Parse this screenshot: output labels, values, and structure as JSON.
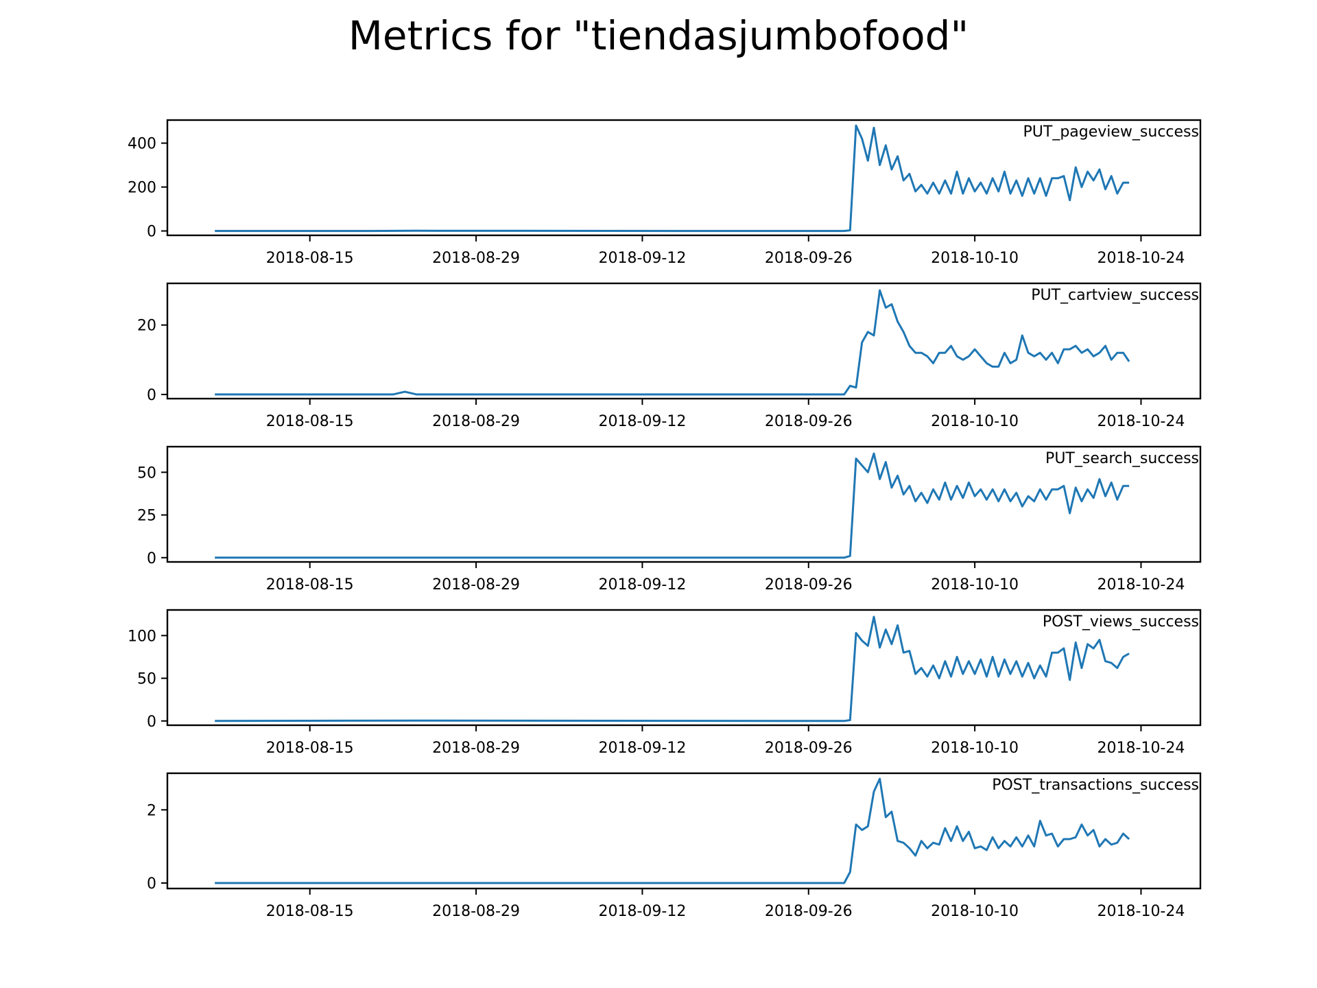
{
  "chart_data": {
    "type": "line",
    "title": "Metrics for \"tiendasjumbofood\"",
    "x_ticks": [
      "2018-08-15",
      "2018-08-29",
      "2018-09-12",
      "2018-09-26",
      "2018-10-10",
      "2018-10-24"
    ],
    "xlim": [
      "2018-08-03",
      "2018-10-29"
    ],
    "grid": false,
    "series_color": "#1f77b4",
    "panels": [
      {
        "label": "PUT_pageview_success",
        "ylim": [
          -20,
          505
        ],
        "yticks": [
          0,
          200,
          400
        ],
        "points": [
          [
            "2018-08-07",
            0
          ],
          [
            "2018-08-20",
            0
          ],
          [
            "2018-08-24",
            1
          ],
          [
            "2018-09-15",
            0
          ],
          [
            "2018-09-29",
            0
          ],
          [
            "2018-09-29T12",
            3
          ],
          [
            "2018-09-30",
            480
          ],
          [
            "2018-09-30T12",
            420
          ],
          [
            "2018-10-01",
            320
          ],
          [
            "2018-10-01T12",
            470
          ],
          [
            "2018-10-02",
            300
          ],
          [
            "2018-10-02T12",
            390
          ],
          [
            "2018-10-03",
            280
          ],
          [
            "2018-10-03T12",
            340
          ],
          [
            "2018-10-04",
            230
          ],
          [
            "2018-10-04T12",
            260
          ],
          [
            "2018-10-05",
            180
          ],
          [
            "2018-10-05T12",
            210
          ],
          [
            "2018-10-06",
            170
          ],
          [
            "2018-10-06T12",
            220
          ],
          [
            "2018-10-07",
            170
          ],
          [
            "2018-10-07T12",
            230
          ],
          [
            "2018-10-08",
            170
          ],
          [
            "2018-10-08T12",
            270
          ],
          [
            "2018-10-09",
            170
          ],
          [
            "2018-10-09T12",
            240
          ],
          [
            "2018-10-10",
            180
          ],
          [
            "2018-10-10T12",
            220
          ],
          [
            "2018-10-11",
            170
          ],
          [
            "2018-10-11T12",
            240
          ],
          [
            "2018-10-12",
            180
          ],
          [
            "2018-10-12T12",
            270
          ],
          [
            "2018-10-13",
            170
          ],
          [
            "2018-10-13T12",
            230
          ],
          [
            "2018-10-14",
            160
          ],
          [
            "2018-10-14T12",
            240
          ],
          [
            "2018-10-15",
            170
          ],
          [
            "2018-10-15T12",
            240
          ],
          [
            "2018-10-16",
            160
          ],
          [
            "2018-10-16T12",
            240
          ],
          [
            "2018-10-17",
            240
          ],
          [
            "2018-10-17T12",
            250
          ],
          [
            "2018-10-18",
            140
          ],
          [
            "2018-10-18T12",
            290
          ],
          [
            "2018-10-19",
            200
          ],
          [
            "2018-10-19T12",
            270
          ],
          [
            "2018-10-20",
            230
          ],
          [
            "2018-10-20T12",
            280
          ],
          [
            "2018-10-21",
            190
          ],
          [
            "2018-10-21T12",
            250
          ],
          [
            "2018-10-22",
            170
          ],
          [
            "2018-10-22T12",
            220
          ],
          [
            "2018-10-23",
            220
          ]
        ]
      },
      {
        "label": "PUT_cartview_success",
        "ylim": [
          -1.2,
          32
        ],
        "yticks": [
          0,
          20
        ],
        "points": [
          [
            "2018-08-07",
            0
          ],
          [
            "2018-08-22",
            0
          ],
          [
            "2018-08-23",
            0.8
          ],
          [
            "2018-08-24",
            0
          ],
          [
            "2018-09-29",
            0
          ],
          [
            "2018-09-29T12",
            2.5
          ],
          [
            "2018-09-30",
            2
          ],
          [
            "2018-09-30T12",
            15
          ],
          [
            "2018-10-01",
            18
          ],
          [
            "2018-10-01T12",
            17
          ],
          [
            "2018-10-02",
            30
          ],
          [
            "2018-10-02T12",
            25
          ],
          [
            "2018-10-03",
            26
          ],
          [
            "2018-10-03T12",
            21
          ],
          [
            "2018-10-04",
            18
          ],
          [
            "2018-10-04T12",
            14
          ],
          [
            "2018-10-05",
            12
          ],
          [
            "2018-10-05T12",
            12
          ],
          [
            "2018-10-06",
            11
          ],
          [
            "2018-10-06T12",
            9
          ],
          [
            "2018-10-07",
            12
          ],
          [
            "2018-10-07T12",
            12
          ],
          [
            "2018-10-08",
            14
          ],
          [
            "2018-10-08T12",
            11
          ],
          [
            "2018-10-09",
            10
          ],
          [
            "2018-10-09T12",
            11
          ],
          [
            "2018-10-10",
            13
          ],
          [
            "2018-10-10T12",
            11
          ],
          [
            "2018-10-11",
            9
          ],
          [
            "2018-10-11T12",
            8
          ],
          [
            "2018-10-12",
            8
          ],
          [
            "2018-10-12T12",
            12
          ],
          [
            "2018-10-13",
            9
          ],
          [
            "2018-10-13T12",
            10
          ],
          [
            "2018-10-14",
            17
          ],
          [
            "2018-10-14T12",
            12
          ],
          [
            "2018-10-15",
            11
          ],
          [
            "2018-10-15T12",
            12
          ],
          [
            "2018-10-16",
            10
          ],
          [
            "2018-10-16T12",
            12
          ],
          [
            "2018-10-17",
            9
          ],
          [
            "2018-10-17T12",
            13
          ],
          [
            "2018-10-18",
            13
          ],
          [
            "2018-10-18T12",
            14
          ],
          [
            "2018-10-19",
            12
          ],
          [
            "2018-10-19T12",
            13
          ],
          [
            "2018-10-20",
            11
          ],
          [
            "2018-10-20T12",
            12
          ],
          [
            "2018-10-21",
            14
          ],
          [
            "2018-10-21T12",
            10
          ],
          [
            "2018-10-22",
            12
          ],
          [
            "2018-10-22T12",
            12
          ],
          [
            "2018-10-23",
            9.5
          ]
        ]
      },
      {
        "label": "PUT_search_success",
        "ylim": [
          -2.5,
          65
        ],
        "yticks": [
          0,
          25,
          50
        ],
        "points": [
          [
            "2018-08-07",
            0
          ],
          [
            "2018-09-29",
            0
          ],
          [
            "2018-09-29T12",
            1
          ],
          [
            "2018-09-30",
            58
          ],
          [
            "2018-09-30T12",
            54
          ],
          [
            "2018-10-01",
            50
          ],
          [
            "2018-10-01T12",
            61
          ],
          [
            "2018-10-02",
            46
          ],
          [
            "2018-10-02T12",
            56
          ],
          [
            "2018-10-03",
            41
          ],
          [
            "2018-10-03T12",
            48
          ],
          [
            "2018-10-04",
            37
          ],
          [
            "2018-10-04T12",
            42
          ],
          [
            "2018-10-05",
            33
          ],
          [
            "2018-10-05T12",
            38
          ],
          [
            "2018-10-06",
            32
          ],
          [
            "2018-10-06T12",
            40
          ],
          [
            "2018-10-07",
            34
          ],
          [
            "2018-10-07T12",
            44
          ],
          [
            "2018-10-08",
            34
          ],
          [
            "2018-10-08T12",
            42
          ],
          [
            "2018-10-09",
            35
          ],
          [
            "2018-10-09T12",
            44
          ],
          [
            "2018-10-10",
            36
          ],
          [
            "2018-10-10T12",
            40
          ],
          [
            "2018-10-11",
            34
          ],
          [
            "2018-10-11T12",
            40
          ],
          [
            "2018-10-12",
            33
          ],
          [
            "2018-10-12T12",
            40
          ],
          [
            "2018-10-13",
            33
          ],
          [
            "2018-10-13T12",
            38
          ],
          [
            "2018-10-14",
            30
          ],
          [
            "2018-10-14T12",
            36
          ],
          [
            "2018-10-15",
            33
          ],
          [
            "2018-10-15T12",
            40
          ],
          [
            "2018-10-16",
            34
          ],
          [
            "2018-10-16T12",
            40
          ],
          [
            "2018-10-17",
            40
          ],
          [
            "2018-10-17T12",
            42
          ],
          [
            "2018-10-18",
            26
          ],
          [
            "2018-10-18T12",
            41
          ],
          [
            "2018-10-19",
            33
          ],
          [
            "2018-10-19T12",
            40
          ],
          [
            "2018-10-20",
            35
          ],
          [
            "2018-10-20T12",
            46
          ],
          [
            "2018-10-21",
            36
          ],
          [
            "2018-10-21T12",
            44
          ],
          [
            "2018-10-22",
            34
          ],
          [
            "2018-10-22T12",
            42
          ],
          [
            "2018-10-23",
            42
          ]
        ]
      },
      {
        "label": "POST_views_success",
        "ylim": [
          -5,
          130
        ],
        "yticks": [
          0,
          50,
          100
        ],
        "points": [
          [
            "2018-08-07",
            0
          ],
          [
            "2018-08-24",
            0.5
          ],
          [
            "2018-09-29",
            0
          ],
          [
            "2018-09-29T12",
            1
          ],
          [
            "2018-09-30",
            103
          ],
          [
            "2018-09-30T12",
            94
          ],
          [
            "2018-10-01",
            88
          ],
          [
            "2018-10-01T12",
            122
          ],
          [
            "2018-10-02",
            86
          ],
          [
            "2018-10-02T12",
            107
          ],
          [
            "2018-10-03",
            90
          ],
          [
            "2018-10-03T12",
            112
          ],
          [
            "2018-10-04",
            80
          ],
          [
            "2018-10-04T12",
            82
          ],
          [
            "2018-10-05",
            55
          ],
          [
            "2018-10-05T12",
            62
          ],
          [
            "2018-10-06",
            52
          ],
          [
            "2018-10-06T12",
            65
          ],
          [
            "2018-10-07",
            50
          ],
          [
            "2018-10-07T12",
            70
          ],
          [
            "2018-10-08",
            52
          ],
          [
            "2018-10-08T12",
            75
          ],
          [
            "2018-10-09",
            55
          ],
          [
            "2018-10-09T12",
            70
          ],
          [
            "2018-10-10",
            55
          ],
          [
            "2018-10-10T12",
            72
          ],
          [
            "2018-10-11",
            52
          ],
          [
            "2018-10-11T12",
            75
          ],
          [
            "2018-10-12",
            52
          ],
          [
            "2018-10-12T12",
            72
          ],
          [
            "2018-10-13",
            55
          ],
          [
            "2018-10-13T12",
            70
          ],
          [
            "2018-10-14",
            52
          ],
          [
            "2018-10-14T12",
            68
          ],
          [
            "2018-10-15",
            50
          ],
          [
            "2018-10-15T12",
            65
          ],
          [
            "2018-10-16",
            52
          ],
          [
            "2018-10-16T12",
            80
          ],
          [
            "2018-10-17",
            80
          ],
          [
            "2018-10-17T12",
            85
          ],
          [
            "2018-10-18",
            48
          ],
          [
            "2018-10-18T12",
            92
          ],
          [
            "2018-10-19",
            62
          ],
          [
            "2018-10-19T12",
            90
          ],
          [
            "2018-10-20",
            85
          ],
          [
            "2018-10-20T12",
            95
          ],
          [
            "2018-10-21",
            70
          ],
          [
            "2018-10-21T12",
            68
          ],
          [
            "2018-10-22",
            62
          ],
          [
            "2018-10-22T12",
            75
          ],
          [
            "2018-10-23",
            79
          ]
        ]
      },
      {
        "label": "POST_transactions_success",
        "ylim": [
          -0.15,
          3.0
        ],
        "yticks": [
          0,
          2
        ],
        "points": [
          [
            "2018-08-07",
            0
          ],
          [
            "2018-09-29",
            0
          ],
          [
            "2018-09-29T12",
            0.3
          ],
          [
            "2018-09-30",
            1.6
          ],
          [
            "2018-09-30T12",
            1.45
          ],
          [
            "2018-10-01",
            1.55
          ],
          [
            "2018-10-01T12",
            2.5
          ],
          [
            "2018-10-02",
            2.85
          ],
          [
            "2018-10-02T12",
            1.8
          ],
          [
            "2018-10-03",
            1.95
          ],
          [
            "2018-10-03T12",
            1.15
          ],
          [
            "2018-10-04",
            1.1
          ],
          [
            "2018-10-04T12",
            0.95
          ],
          [
            "2018-10-05",
            0.75
          ],
          [
            "2018-10-05T12",
            1.15
          ],
          [
            "2018-10-06",
            0.95
          ],
          [
            "2018-10-06T12",
            1.1
          ],
          [
            "2018-10-07",
            1.05
          ],
          [
            "2018-10-07T12",
            1.5
          ],
          [
            "2018-10-08",
            1.15
          ],
          [
            "2018-10-08T12",
            1.55
          ],
          [
            "2018-10-09",
            1.15
          ],
          [
            "2018-10-09T12",
            1.4
          ],
          [
            "2018-10-10",
            0.95
          ],
          [
            "2018-10-10T12",
            1.0
          ],
          [
            "2018-10-11",
            0.9
          ],
          [
            "2018-10-11T12",
            1.25
          ],
          [
            "2018-10-12",
            0.95
          ],
          [
            "2018-10-12T12",
            1.15
          ],
          [
            "2018-10-13",
            1.0
          ],
          [
            "2018-10-13T12",
            1.25
          ],
          [
            "2018-10-14",
            1.0
          ],
          [
            "2018-10-14T12",
            1.3
          ],
          [
            "2018-10-15",
            1.0
          ],
          [
            "2018-10-15T12",
            1.7
          ],
          [
            "2018-10-16",
            1.3
          ],
          [
            "2018-10-16T12",
            1.35
          ],
          [
            "2018-10-17",
            1.0
          ],
          [
            "2018-10-17T12",
            1.2
          ],
          [
            "2018-10-18",
            1.2
          ],
          [
            "2018-10-18T12",
            1.25
          ],
          [
            "2018-10-19",
            1.6
          ],
          [
            "2018-10-19T12",
            1.3
          ],
          [
            "2018-10-20",
            1.45
          ],
          [
            "2018-10-20T12",
            1.0
          ],
          [
            "2018-10-21",
            1.2
          ],
          [
            "2018-10-21T12",
            1.05
          ],
          [
            "2018-10-22",
            1.1
          ],
          [
            "2018-10-22T12",
            1.35
          ],
          [
            "2018-10-23",
            1.2
          ]
        ]
      }
    ]
  }
}
